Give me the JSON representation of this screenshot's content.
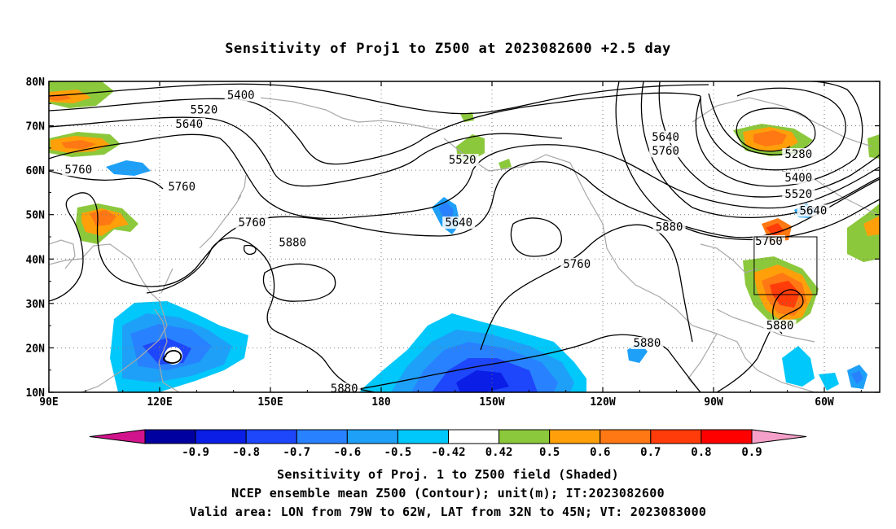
{
  "title": "Sensitivity of Proj1 to Z500 at 2023082600 +2.5 day",
  "map": {
    "lat_labels": [
      "80N",
      "70N",
      "60N",
      "50N",
      "40N",
      "30N",
      "20N",
      "10N"
    ],
    "lon_labels": [
      "90E",
      "120E",
      "150E",
      "180",
      "150W",
      "120W",
      "90W",
      "60W"
    ],
    "lon_range": [
      90,
      315
    ],
    "lat_range": [
      10,
      80
    ],
    "grid": "dotted",
    "valid_box": {
      "lon": [
        281,
        298
      ],
      "lat": [
        32,
        45
      ]
    },
    "contour_labels": [
      {
        "text": "5400",
        "lon": 142,
        "lat": 76.8
      },
      {
        "text": "5520",
        "lon": 132,
        "lat": 73.5
      },
      {
        "text": "5640",
        "lon": 128,
        "lat": 70.3
      },
      {
        "text": "5760",
        "lon": 98,
        "lat": 60
      },
      {
        "text": "5760",
        "lon": 126,
        "lat": 56.2
      },
      {
        "text": "5520",
        "lon": 202,
        "lat": 62.2
      },
      {
        "text": "5640",
        "lon": 257,
        "lat": 67.4
      },
      {
        "text": "5760",
        "lon": 257,
        "lat": 64.2
      },
      {
        "text": "5760",
        "lon": 145,
        "lat": 48.1
      },
      {
        "text": "5880",
        "lon": 156,
        "lat": 43.6
      },
      {
        "text": "5640",
        "lon": 201,
        "lat": 48.1
      },
      {
        "text": "5760",
        "lon": 233,
        "lat": 38.8
      },
      {
        "text": "5880",
        "lon": 258,
        "lat": 47.1
      },
      {
        "text": "5280",
        "lon": 293,
        "lat": 63.5
      },
      {
        "text": "5400",
        "lon": 293,
        "lat": 58.2
      },
      {
        "text": "5520",
        "lon": 293,
        "lat": 54.5
      },
      {
        "text": "5640",
        "lon": 297,
        "lat": 50.8
      },
      {
        "text": "5760",
        "lon": 285,
        "lat": 43.9
      },
      {
        "text": "5880",
        "lon": 288,
        "lat": 24.9
      },
      {
        "text": "5880",
        "lon": 252,
        "lat": 21
      },
      {
        "text": "5880",
        "lon": 170,
        "lat": 10.7
      }
    ]
  },
  "colorbar": {
    "labels": [
      "-0.9",
      "-0.8",
      "-0.7",
      "-0.6",
      "-0.5",
      "-0.42",
      "0.42",
      "0.5",
      "0.6",
      "0.7",
      "0.8",
      "0.9"
    ],
    "colors": [
      "#0000a0",
      "#0a1ee6",
      "#1e46fa",
      "#2882ff",
      "#1ea0f8",
      "#00c8fa",
      "#ffffff",
      "#8cc83c",
      "#ffa00a",
      "#ff7814",
      "#ff3c0a",
      "#ff0000"
    ],
    "low_end_color": "#d2148c",
    "high_end_color": "#f5a0c8"
  },
  "footer": {
    "line1": "Sensitivity of Proj. 1 to Z500 field (Shaded)",
    "line2": "NCEP ensemble mean Z500 (Contour); unit(m); IT:2023082600",
    "line3": "Valid area: LON from 79W to 62W, LAT from 32N to 45N; VT: 2023083000"
  }
}
